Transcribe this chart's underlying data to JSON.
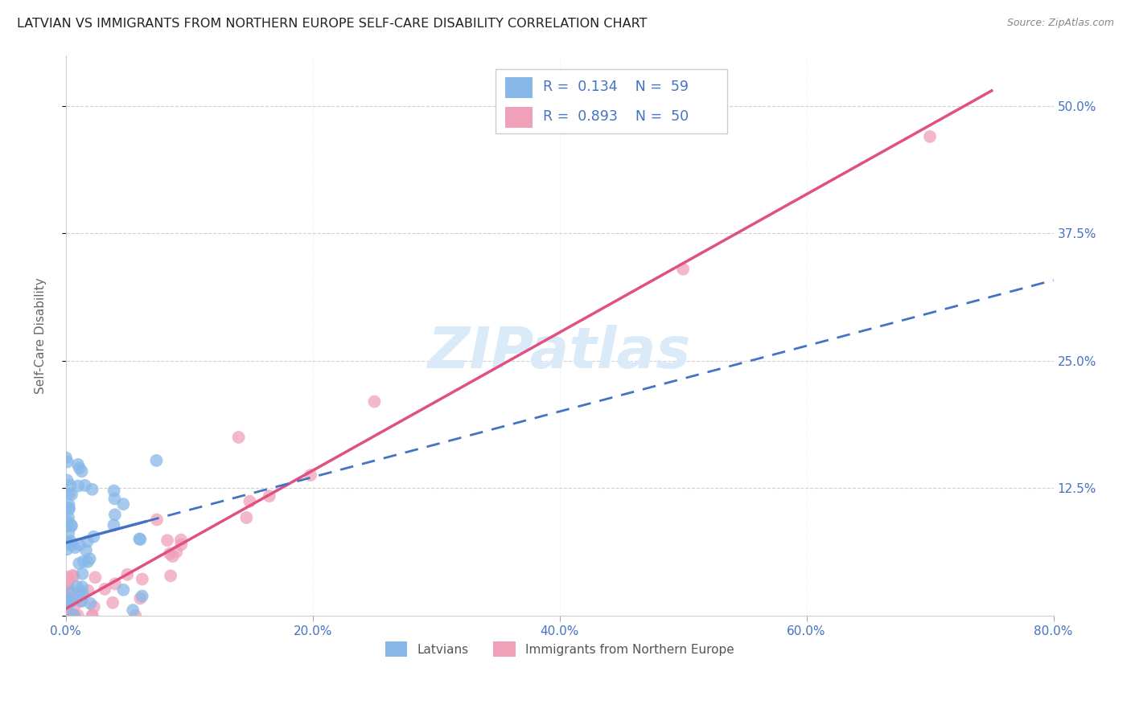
{
  "title": "LATVIAN VS IMMIGRANTS FROM NORTHERN EUROPE SELF-CARE DISABILITY CORRELATION CHART",
  "source": "Source: ZipAtlas.com",
  "ylabel": "Self-Care Disability",
  "xlim": [
    0.0,
    0.8
  ],
  "ylim": [
    0.0,
    0.55
  ],
  "xtick_positions": [
    0.0,
    0.2,
    0.4,
    0.6,
    0.8
  ],
  "xtick_labels": [
    "0.0%",
    "20.0%",
    "40.0%",
    "60.0%",
    "80.0%"
  ],
  "ytick_positions": [
    0.0,
    0.125,
    0.25,
    0.375,
    0.5
  ],
  "R_latvian": 0.134,
  "N_latvian": 59,
  "R_immigrant": 0.893,
  "N_immigrant": 50,
  "blue_color": "#4472c4",
  "pink_color": "#e05080",
  "scatter_blue": "#88b8e8",
  "scatter_pink": "#f0a0b8",
  "background_color": "#ffffff",
  "grid_color": "#cccccc",
  "watermark": "ZIPatlas",
  "watermark_color": "#daeaf8"
}
